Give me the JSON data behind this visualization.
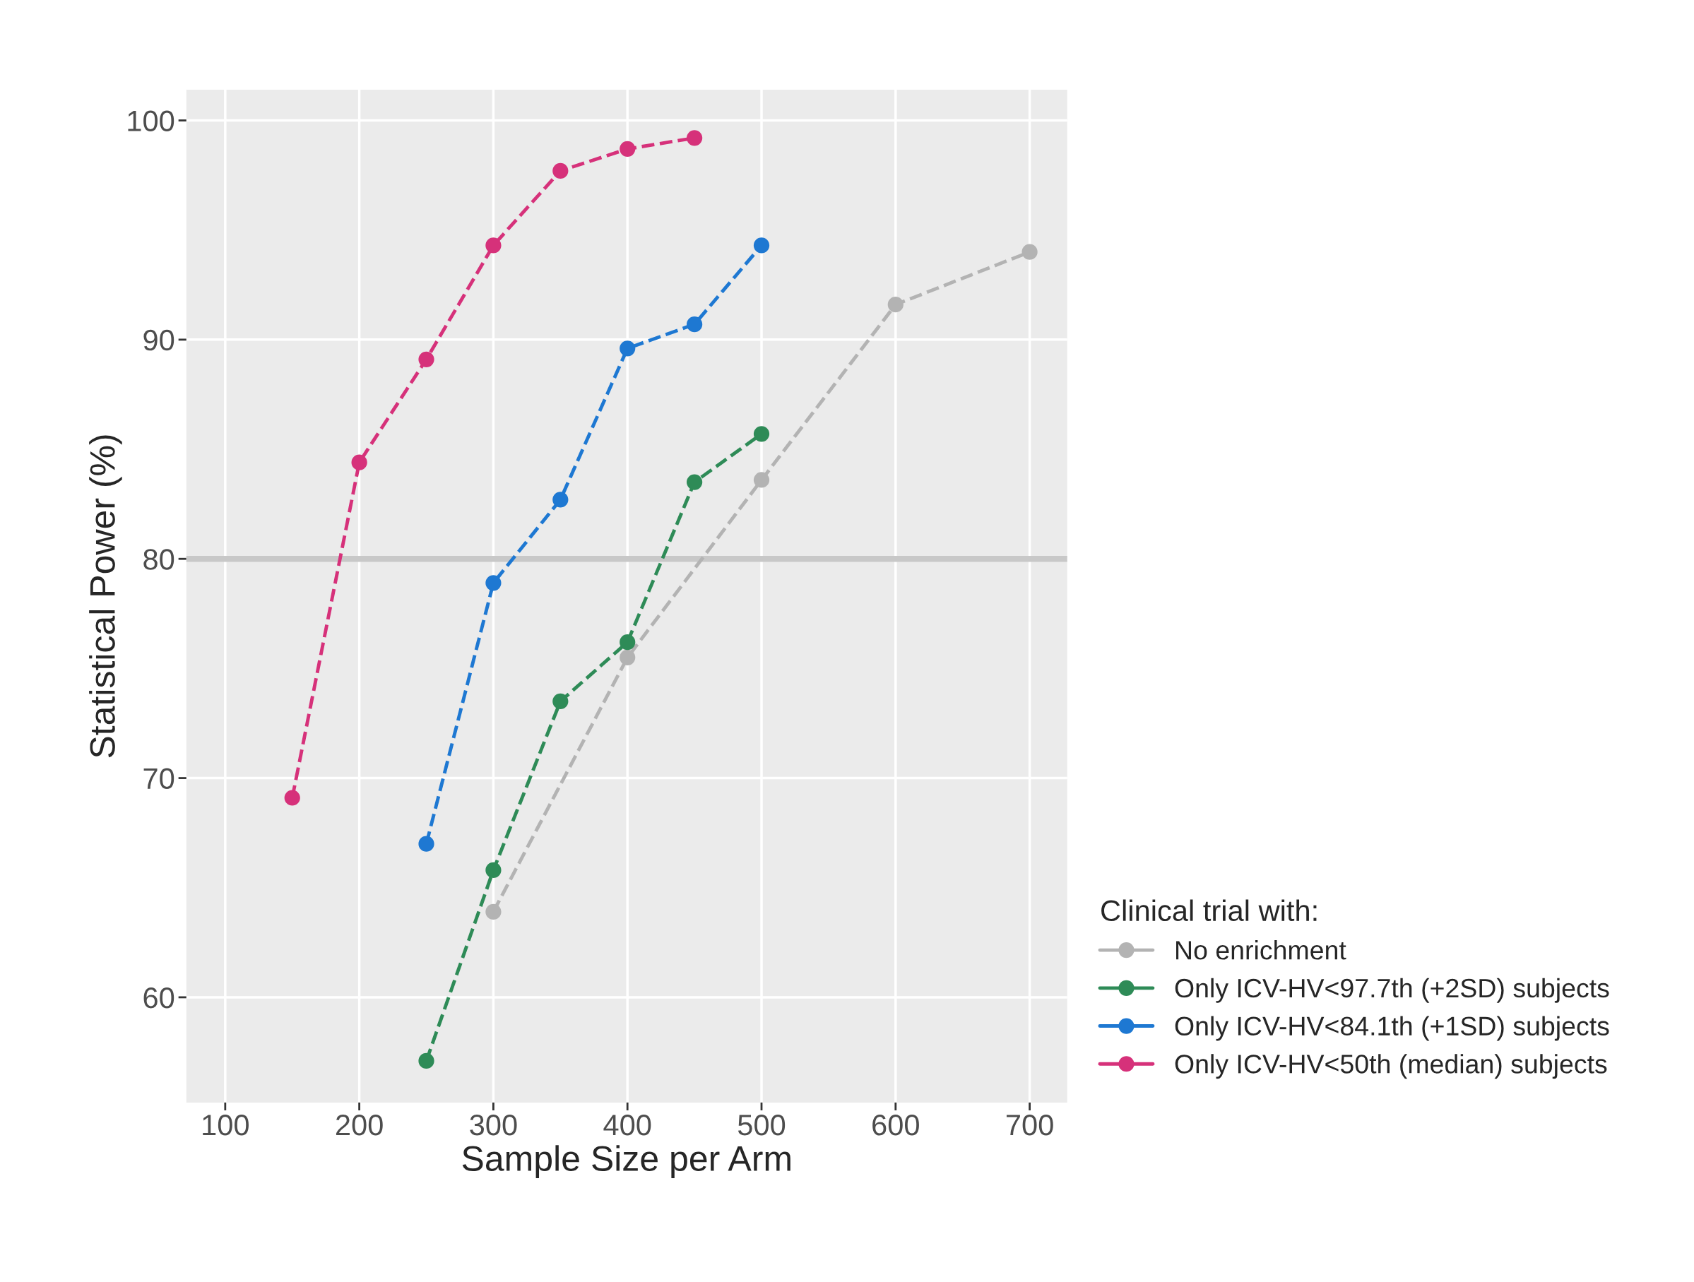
{
  "chart_data": {
    "type": "line",
    "xlabel": "Sample Size per Arm",
    "ylabel": "Statistical Power (%)",
    "legend_title": "Clinical trial with:",
    "series": [
      {
        "name": "No enrichment",
        "color": "#b3b3b3",
        "x": [
          300,
          400,
          500,
          600,
          700
        ],
        "values": [
          63.9,
          75.5,
          83.6,
          91.6,
          94.0
        ]
      },
      {
        "name": "Only ICV-HV<97.7th (+2SD) subjects",
        "color": "#2e8b57",
        "x": [
          250,
          300,
          350,
          400,
          450,
          500
        ],
        "values": [
          57.1,
          65.8,
          73.5,
          76.2,
          83.5,
          85.7
        ]
      },
      {
        "name": "Only ICV-HV<84.1th (+1SD) subjects",
        "color": "#1e78d2",
        "x": [
          250,
          300,
          350,
          400,
          450,
          500
        ],
        "values": [
          67.0,
          78.9,
          82.7,
          89.6,
          90.7,
          94.3
        ]
      },
      {
        "name": "Only ICV-HV<50th (median) subjects",
        "color": "#d6317a",
        "x": [
          150,
          200,
          250,
          300,
          350,
          400,
          450
        ],
        "values": [
          69.1,
          84.4,
          89.1,
          94.3,
          97.7,
          98.7,
          99.2
        ]
      }
    ],
    "xlim": [
      71,
      728
    ],
    "ylim": [
      55.2,
      101.4
    ],
    "xticks": [
      100,
      200,
      300,
      400,
      500,
      600,
      700
    ],
    "yticks": [
      60,
      70,
      80,
      90,
      100
    ],
    "ref_lines": [
      {
        "axis": "y",
        "value": 80,
        "color": "#c8c8c8",
        "line_style": "solid"
      }
    ],
    "grid": true,
    "legend": "bottom right",
    "marker": "circle",
    "line_style": "dashed"
  }
}
